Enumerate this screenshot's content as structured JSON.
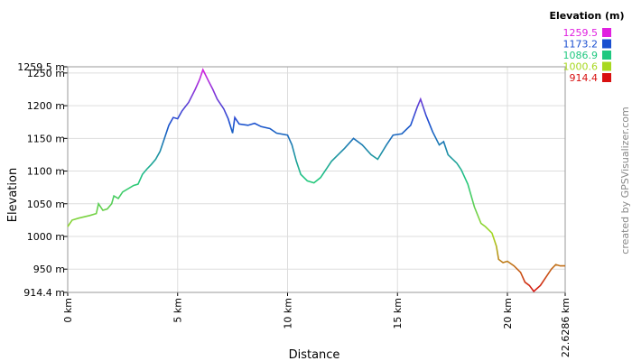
{
  "chart_data": {
    "type": "line",
    "xlabel": "Distance",
    "ylabel": "Elevation",
    "x": [
      0,
      0.2,
      0.5,
      1.0,
      1.3,
      1.4,
      1.6,
      1.8,
      2.0,
      2.1,
      2.3,
      2.5,
      3.0,
      3.2,
      3.4,
      3.6,
      3.8,
      4.0,
      4.2,
      4.4,
      4.6,
      4.8,
      5.0,
      5.2,
      5.5,
      5.8,
      6.0,
      6.15,
      6.4,
      6.6,
      6.8,
      7.1,
      7.3,
      7.5,
      7.6,
      7.8,
      8.2,
      8.5,
      8.8,
      9.2,
      9.5,
      10.0,
      10.2,
      10.4,
      10.6,
      10.9,
      11.2,
      11.5,
      11.8,
      12.0,
      12.3,
      12.6,
      13.0,
      13.4,
      13.8,
      14.1,
      14.5,
      14.8,
      15.2,
      15.6,
      15.9,
      16.05,
      16.3,
      16.6,
      16.9,
      17.1,
      17.3,
      17.7,
      17.9,
      18.2,
      18.5,
      18.8,
      19.0,
      19.3,
      19.5,
      19.6,
      19.8,
      20.0,
      20.3,
      20.6,
      20.8,
      21.0,
      21.2,
      21.5,
      21.8,
      22.0,
      22.2,
      22.4,
      22.6286
    ],
    "series": [
      {
        "name": "Elevation",
        "values": [
          1015,
          1025,
          1028,
          1032,
          1035,
          1050,
          1040,
          1042,
          1050,
          1062,
          1058,
          1068,
          1078,
          1080,
          1095,
          1103,
          1110,
          1118,
          1130,
          1150,
          1170,
          1182,
          1180,
          1192,
          1205,
          1225,
          1240,
          1255,
          1238,
          1225,
          1210,
          1195,
          1180,
          1158,
          1182,
          1172,
          1170,
          1173,
          1168,
          1165,
          1158,
          1155,
          1140,
          1115,
          1095,
          1085,
          1082,
          1090,
          1105,
          1115,
          1125,
          1135,
          1150,
          1140,
          1125,
          1118,
          1140,
          1155,
          1157,
          1170,
          1198,
          1210,
          1185,
          1160,
          1140,
          1145,
          1125,
          1112,
          1102,
          1080,
          1045,
          1020,
          1015,
          1005,
          985,
          965,
          960,
          962,
          955,
          945,
          930,
          925,
          916,
          925,
          940,
          950,
          957,
          955,
          955
        ]
      }
    ],
    "xlim": [
      0,
      22.6286
    ],
    "xticks": [
      {
        "value": 0,
        "label": "0 km"
      },
      {
        "value": 5,
        "label": "5 km"
      },
      {
        "value": 10,
        "label": "10 km"
      },
      {
        "value": 15,
        "label": "15 km"
      },
      {
        "value": 20,
        "label": "20 km"
      },
      {
        "value": 22.6286,
        "label": "22.6286 km"
      }
    ],
    "ylim": [
      914.4,
      1259.5
    ],
    "yticks": [
      {
        "value": 914.4,
        "label": "914.4 m"
      },
      {
        "value": 950,
        "label": "950 m"
      },
      {
        "value": 1000,
        "label": "1000 m"
      },
      {
        "value": 1050,
        "label": "1050 m"
      },
      {
        "value": 1100,
        "label": "1100 m"
      },
      {
        "value": 1150,
        "label": "1150 m"
      },
      {
        "value": 1200,
        "label": "1200 m"
      },
      {
        "value": 1250,
        "label": "1250 m"
      },
      {
        "value": 1259.5,
        "label": "1259.5 m"
      }
    ],
    "grid": true,
    "legend": {
      "title": "Elevation (m)",
      "values": [
        1259.5,
        1173.2,
        1086.9,
        1000.6,
        914.4
      ],
      "colors": [
        "#e020e0",
        "#1a4fd0",
        "#20c880",
        "#a8d820",
        "#d81010"
      ]
    },
    "credit": "created by GPSVisualizer.com"
  }
}
